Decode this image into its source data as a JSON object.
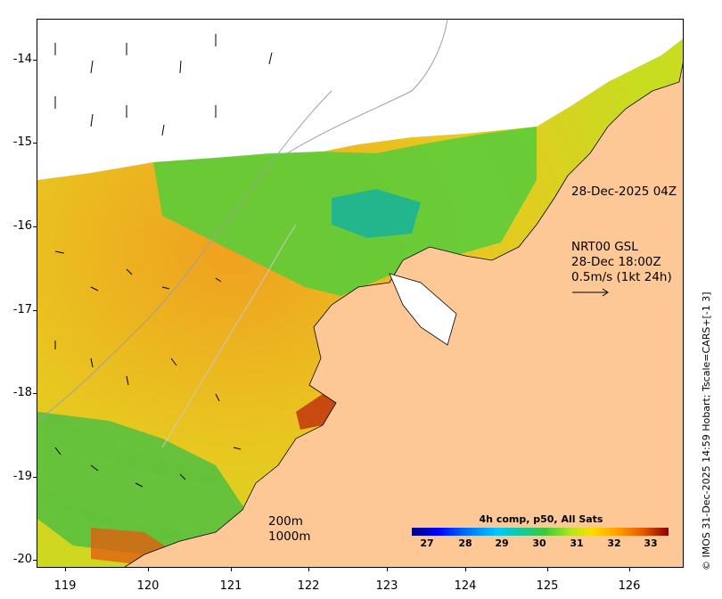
{
  "y_axis": {
    "ticks": [
      "-14",
      "-15",
      "-16",
      "-17",
      "-18",
      "-19",
      "-20"
    ]
  },
  "x_axis": {
    "ticks": [
      "119",
      "120",
      "121",
      "122",
      "123",
      "124",
      "125",
      "126"
    ]
  },
  "annotations": {
    "timestamp": "28-Dec-2025 04Z",
    "current_model": "NRT00 GSL",
    "current_time": "28-Dec 18:00Z",
    "current_scale": "0.5m/s (1kt 24h)",
    "isobath_shallow": "200m",
    "isobath_deep": "1000m"
  },
  "legend": {
    "title": "4h comp, p50, All Sats",
    "ticks": [
      "27",
      "28",
      "29",
      "30",
      "31",
      "32",
      "33"
    ]
  },
  "credit": "© IMOS 31-Dec-2025 14:59 Hobart; Tscale=CARS+[-1 3]",
  "colors": {
    "land": "#fdc896",
    "warm": "#f0a020",
    "mid": "#e8d020",
    "cool": "#3cc83c",
    "cold": "#14b4a0"
  }
}
